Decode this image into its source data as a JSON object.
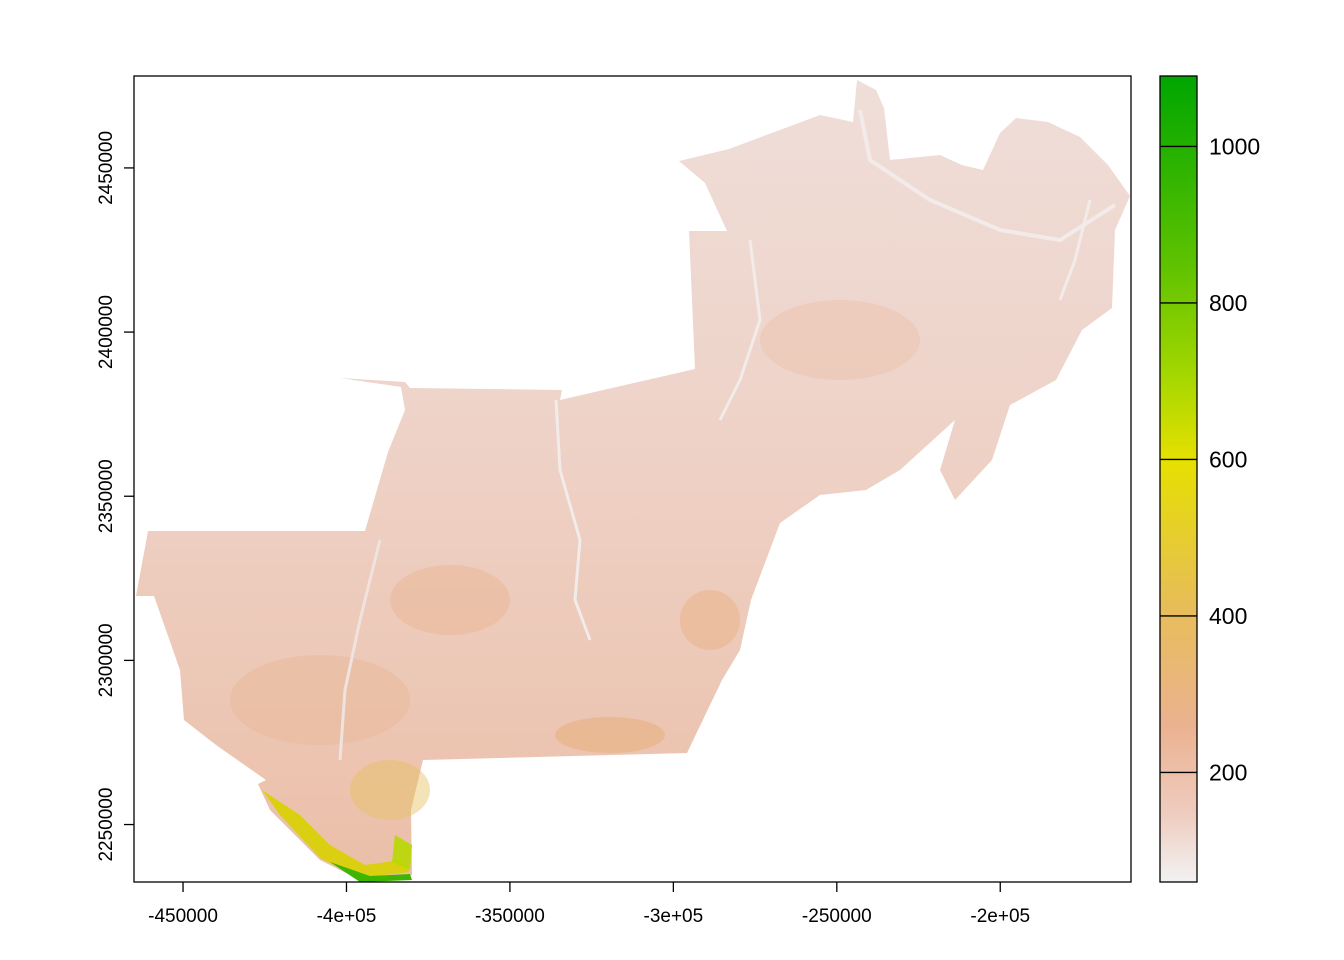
{
  "map": {
    "type": "raster",
    "x_axis": {
      "range": [
        -465000,
        -160000
      ],
      "ticks": [
        {
          "value": -450000,
          "label": "-450000"
        },
        {
          "value": -400000,
          "label": "-4e+05"
        },
        {
          "value": -350000,
          "label": "-350000"
        },
        {
          "value": -300000,
          "label": "-3e+05"
        },
        {
          "value": -250000,
          "label": "-250000"
        },
        {
          "value": -200000,
          "label": "-2e+05"
        }
      ]
    },
    "y_axis": {
      "range": [
        2232500,
        2478000
      ],
      "ticks": [
        {
          "value": 2250000,
          "label": "2250000"
        },
        {
          "value": 2300000,
          "label": "2300000"
        },
        {
          "value": 2350000,
          "label": "2350000"
        },
        {
          "value": 2400000,
          "label": "2400000"
        },
        {
          "value": 2450000,
          "label": "2450000"
        }
      ]
    },
    "legend": {
      "placement": "right",
      "range": [
        60,
        1090
      ],
      "ticks": [
        {
          "value": 200,
          "label": "200"
        },
        {
          "value": 400,
          "label": "400"
        },
        {
          "value": 600,
          "label": "600"
        },
        {
          "value": 800,
          "label": "800"
        },
        {
          "value": 1000,
          "label": "1000"
        }
      ],
      "colors": [
        "#f2f2f2",
        "#efcbbe",
        "#ebb290",
        "#e7be55",
        "#e6e000",
        "#a8d800",
        "#5ec200",
        "#00a600"
      ],
      "color_stops": [
        60,
        150,
        260,
        420,
        600,
        700,
        850,
        1090
      ]
    }
  }
}
